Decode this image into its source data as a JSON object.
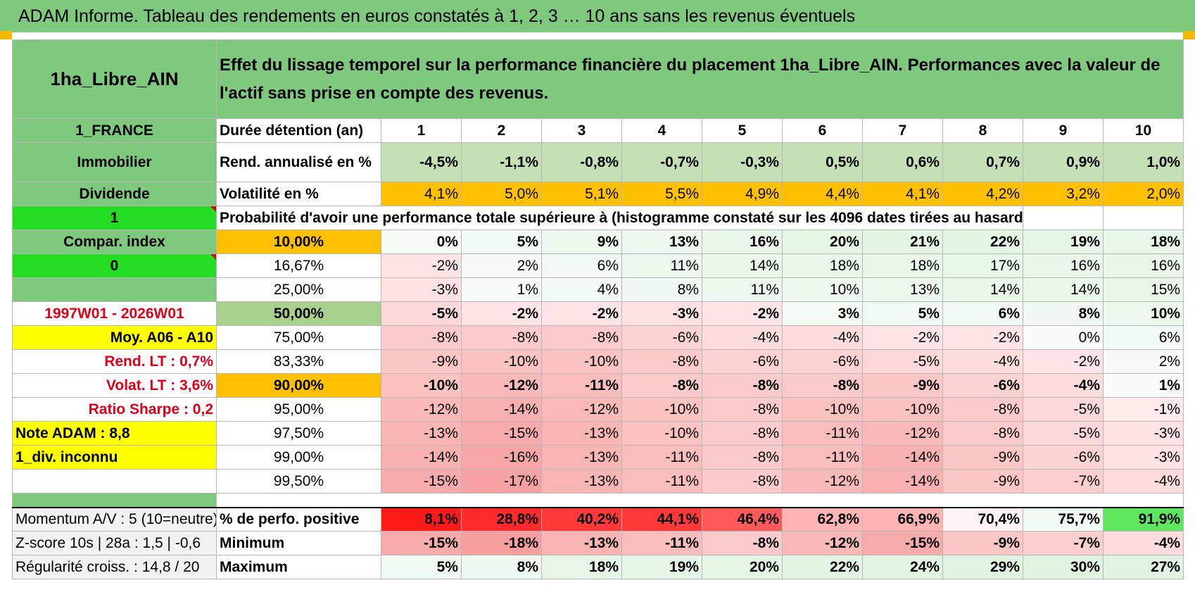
{
  "title": "ADAM Informe. Tableau des rendements en euros constatés à 1, 2, 3 … 10 ans sans les revenus éventuels",
  "header": {
    "asset_name": "1ha_Libre_AIN",
    "description": "Effet du lissage temporel sur la performance financière du placement 1ha_Libre_AIN. Performances avec la valeur de l'actif sans prise en compte des revenus."
  },
  "left": {
    "country": "1_FRANCE",
    "category": "Immobilier",
    "income_type": "Dividende",
    "flag1": "1",
    "compare_label": "Compar. index",
    "flag2": "0",
    "blank": "",
    "period": "1997W01 - 2026W01",
    "avg": "Moy. A06 - A10",
    "rend_lt": "Rend. LT :    0,7%",
    "volat_lt": "Volat. LT :    3,6%",
    "sharpe": "Ratio Sharpe :    0,2",
    "note": "Note ADAM : 8,8",
    "div": "1_div. inconnu",
    "momentum": "Momentum A/V : 5 (10=neutre)",
    "zscore": "Z-score 10s | 28a : 1,5 | -0,6",
    "regularite": "Régularité croiss. : 14,8 / 20"
  },
  "labels": {
    "duree": "Durée détention (an)",
    "rend": "Rend. annualisé en %",
    "vol": "Volatilité en %",
    "proba": "Probabilité d'avoir une performance totale supérieure à (histogramme constaté sur les 4096 dates tirées au hasard)",
    "positive": "% de perfo. positive",
    "minimum": "Minimum",
    "maximum": "Maximum"
  },
  "years": [
    "1",
    "2",
    "3",
    "4",
    "5",
    "6",
    "7",
    "8",
    "9",
    "10"
  ],
  "rend": [
    "-4,5%",
    "-1,1%",
    "-0,8%",
    "-0,7%",
    "-0,3%",
    "0,5%",
    "0,6%",
    "0,7%",
    "0,9%",
    "1,0%"
  ],
  "vol": [
    "4,1%",
    "5,0%",
    "5,1%",
    "5,5%",
    "4,9%",
    "4,4%",
    "4,1%",
    "4,2%",
    "3,2%",
    "2,0%"
  ],
  "quantiles": [
    {
      "p": "10,00%",
      "v": [
        "0%",
        "5%",
        "9%",
        "13%",
        "16%",
        "20%",
        "21%",
        "22%",
        "19%",
        "18%"
      ]
    },
    {
      "p": "16,67%",
      "v": [
        "-2%",
        "2%",
        "6%",
        "11%",
        "14%",
        "18%",
        "18%",
        "17%",
        "16%",
        "16%"
      ]
    },
    {
      "p": "25,00%",
      "v": [
        "-3%",
        "1%",
        "4%",
        "8%",
        "11%",
        "10%",
        "13%",
        "14%",
        "14%",
        "15%"
      ]
    },
    {
      "p": "50,00%",
      "v": [
        "-5%",
        "-2%",
        "-2%",
        "-3%",
        "-2%",
        "3%",
        "5%",
        "6%",
        "8%",
        "10%"
      ]
    },
    {
      "p": "75,00%",
      "v": [
        "-8%",
        "-8%",
        "-8%",
        "-6%",
        "-4%",
        "-4%",
        "-2%",
        "-2%",
        "0%",
        "6%"
      ]
    },
    {
      "p": "83,33%",
      "v": [
        "-9%",
        "-10%",
        "-10%",
        "-8%",
        "-6%",
        "-6%",
        "-5%",
        "-4%",
        "-2%",
        "2%"
      ]
    },
    {
      "p": "90,00%",
      "v": [
        "-10%",
        "-12%",
        "-11%",
        "-8%",
        "-8%",
        "-8%",
        "-9%",
        "-6%",
        "-4%",
        "1%"
      ]
    },
    {
      "p": "95,00%",
      "v": [
        "-12%",
        "-14%",
        "-12%",
        "-10%",
        "-8%",
        "-10%",
        "-10%",
        "-8%",
        "-5%",
        "-1%"
      ]
    },
    {
      "p": "97,50%",
      "v": [
        "-13%",
        "-15%",
        "-13%",
        "-10%",
        "-8%",
        "-11%",
        "-12%",
        "-8%",
        "-5%",
        "-3%"
      ]
    },
    {
      "p": "99,00%",
      "v": [
        "-14%",
        "-16%",
        "-13%",
        "-11%",
        "-8%",
        "-11%",
        "-14%",
        "-9%",
        "-6%",
        "-3%"
      ]
    },
    {
      "p": "99,50%",
      "v": [
        "-15%",
        "-17%",
        "-13%",
        "-11%",
        "-8%",
        "-12%",
        "-14%",
        "-9%",
        "-7%",
        "-4%"
      ]
    }
  ],
  "positive": [
    "8,1%",
    "28,8%",
    "40,2%",
    "44,1%",
    "46,4%",
    "62,8%",
    "66,9%",
    "70,4%",
    "75,7%",
    "91,9%"
  ],
  "minimum": [
    "-15%",
    "-18%",
    "-13%",
    "-11%",
    "-8%",
    "-12%",
    "-15%",
    "-9%",
    "-7%",
    "-4%"
  ],
  "maximum": [
    "5%",
    "8%",
    "18%",
    "19%",
    "20%",
    "22%",
    "24%",
    "29%",
    "30%",
    "27%"
  ],
  "colors": {
    "green": "#7fc97f",
    "orange": "#ffc000",
    "yellow": "#ffff00",
    "red": "#ff0000"
  }
}
